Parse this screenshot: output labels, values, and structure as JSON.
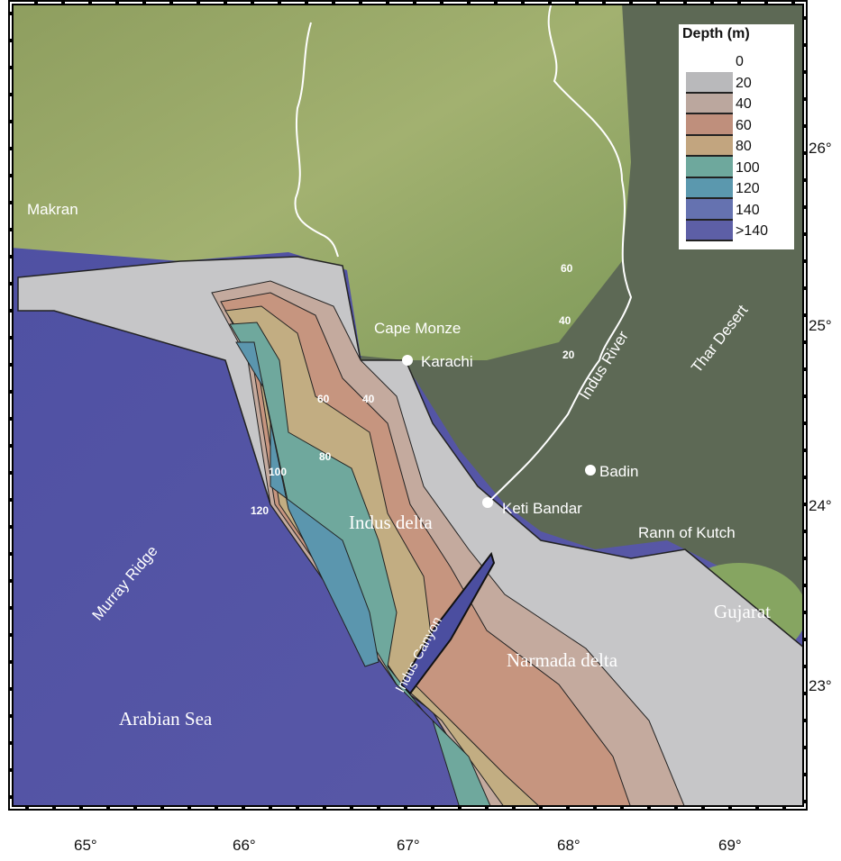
{
  "legend": {
    "title": "Depth (m)",
    "ticks": [
      "0",
      "20",
      "40",
      "60",
      "80",
      "100",
      "120",
      "140",
      ">140"
    ],
    "colors": [
      "#b9b9bb",
      "#bba79e",
      "#bf8f7c",
      "#c2a57f",
      "#6ea89d",
      "#5b98ae",
      "#6572b0",
      "#5d5fa6"
    ]
  },
  "places": {
    "makran": "Makran",
    "cape_monze": "Cape Monze",
    "karachi": "Karachi",
    "indus_river": "Indus River",
    "thar_desert": "Thar Desert",
    "badin": "Badin",
    "keti_bandar": "Keti Bandar",
    "rann_of_kutch": "Rann of Kutch",
    "gujarat": "Gujarat",
    "indus_delta": "Indus delta",
    "narmada_delta": "Narmada delta",
    "indus_canyon": "Indus Canyon",
    "murray_ridge": "Murray Ridge",
    "arabian_sea": "Arabian Sea"
  },
  "contour_labels": {
    "land_60": "60",
    "land_40": "40",
    "land_20": "20",
    "sea_60": "60",
    "sea_40": "40",
    "sea_80": "80",
    "sea_100": "100",
    "sea_120": "120"
  },
  "axes": {
    "longitude": [
      "65°",
      "66°",
      "67°",
      "68°",
      "69°"
    ],
    "latitude": [
      "26°",
      "25°",
      "24°",
      "23°"
    ]
  },
  "colors": {
    "sea": "#5a5aa8",
    "shelf": "#c6c6c8",
    "land_green": "#9aab6a",
    "land_dark": "#5d6955",
    "river": "#ffffff"
  }
}
